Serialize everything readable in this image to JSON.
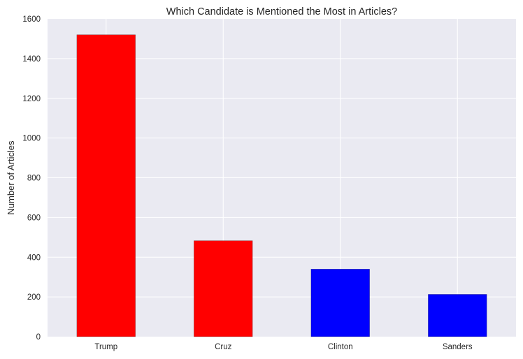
{
  "chart_data": {
    "type": "bar",
    "title": "Which Candidate is Mentioned the Most in Articles?",
    "xlabel": "",
    "ylabel": "Number of Articles",
    "categories": [
      "Trump",
      "Cruz",
      "Clinton",
      "Sanders"
    ],
    "values": [
      1520,
      483,
      340,
      213
    ],
    "bar_colors": [
      "#ff0000",
      "#ff0000",
      "#0000ff",
      "#0000ff"
    ],
    "ylim": [
      0,
      1600
    ],
    "yticks": [
      "0",
      "200",
      "400",
      "600",
      "800",
      "1000",
      "1200",
      "1400",
      "1600"
    ],
    "grid": true,
    "legend": "none",
    "style": {
      "plot_background": "#eaeaf2",
      "grid_color": "#ffffff"
    }
  }
}
